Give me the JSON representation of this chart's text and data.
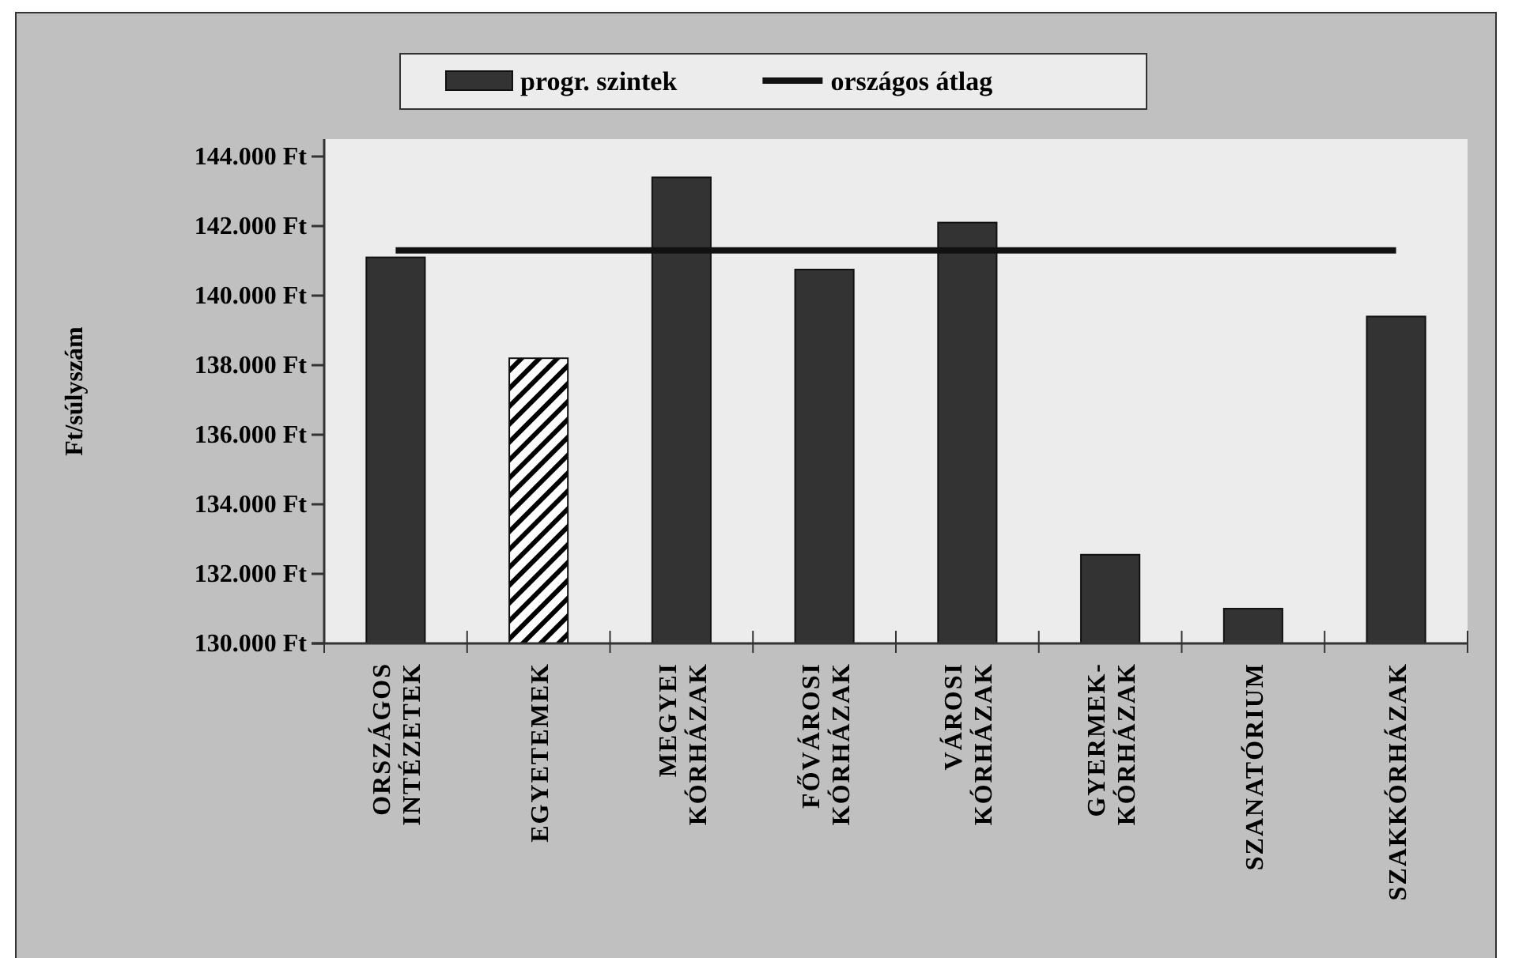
{
  "chart_data": {
    "type": "bar",
    "ylabel": "Ft/súlyszám",
    "categories": [
      "ORSZÁGOS\nINTÉZETEK",
      "EGYETEMEK",
      "MEGYEI\nKÓRHÁZAK",
      "FŐVÁROSI\nKÓRHÁZAK",
      "VÁROSI\nKÓRHÁZAK",
      "GYERMEK-\nKÓRHÁZAK",
      "SZANATÓRIUM",
      "SZAKKÓRHÁZAK"
    ],
    "series": [
      {
        "name": "progr. szintek",
        "color": "#333333",
        "colors": [
          "#333333",
          "#ffffff",
          "#333333",
          "#333333",
          "#333333",
          "#333333",
          "#333333",
          "#333333"
        ],
        "values": [
          141100,
          138200,
          143400,
          140750,
          142100,
          132550,
          131000,
          139400
        ]
      },
      {
        "name": "országos átlag",
        "type": "line",
        "color": "#111111",
        "values": [
          141300,
          141300,
          141300,
          141300,
          141300,
          141300,
          141300,
          141300
        ]
      }
    ],
    "ylim": [
      130000,
      144500
    ],
    "yticks": [
      {
        "value": 130000,
        "label": "130.000 Ft"
      },
      {
        "value": 132000,
        "label": "132.000 Ft"
      },
      {
        "value": 134000,
        "label": "134.000 Ft"
      },
      {
        "value": 136000,
        "label": "136.000 Ft"
      },
      {
        "value": 138000,
        "label": "138.000 Ft"
      },
      {
        "value": 140000,
        "label": "140.000 Ft"
      },
      {
        "value": 142000,
        "label": "142.000 Ft"
      },
      {
        "value": 144000,
        "label": "144.000 Ft"
      }
    ],
    "legend": "top",
    "marker": "none",
    "line_style": "solid",
    "grid": false
  }
}
